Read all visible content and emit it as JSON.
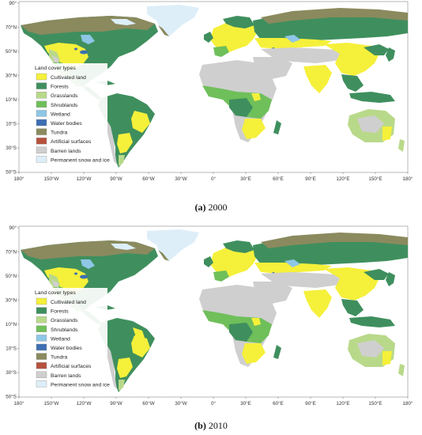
{
  "legend_title": "Land cover types",
  "classes": [
    {
      "label": "Cultivated land",
      "color": "#f5f03a"
    },
    {
      "label": "Forests",
      "color": "#3f8f5e"
    },
    {
      "label": "Grasslands",
      "color": "#b9d98a"
    },
    {
      "label": "Shrublands",
      "color": "#6fbf5a"
    },
    {
      "label": "Wetland",
      "color": "#8ec6e6"
    },
    {
      "label": "Water bodies",
      "color": "#3d6fb3"
    },
    {
      "label": "Tundra",
      "color": "#8a8a5e"
    },
    {
      "label": "Artificial surfaces",
      "color": "#b5523e"
    },
    {
      "label": "Barren lands",
      "color": "#cfcfcf"
    },
    {
      "label": "Permanent snow and ice",
      "color": "#ddeef8"
    }
  ],
  "lat_ticks": [
    "90°",
    "70°N",
    "50°N",
    "30°N",
    "10°N",
    "10°S",
    "30°S",
    "50°S"
  ],
  "lon_ticks": [
    "180°",
    "150°W",
    "120°W",
    "90°W",
    "60°W",
    "30°W",
    "0°",
    "30°E",
    "60°E",
    "90°E",
    "120°E",
    "150°E",
    "180°"
  ],
  "panels": [
    {
      "letter": "(a)",
      "year": "2000"
    },
    {
      "letter": "(b)",
      "year": "2010"
    }
  ]
}
